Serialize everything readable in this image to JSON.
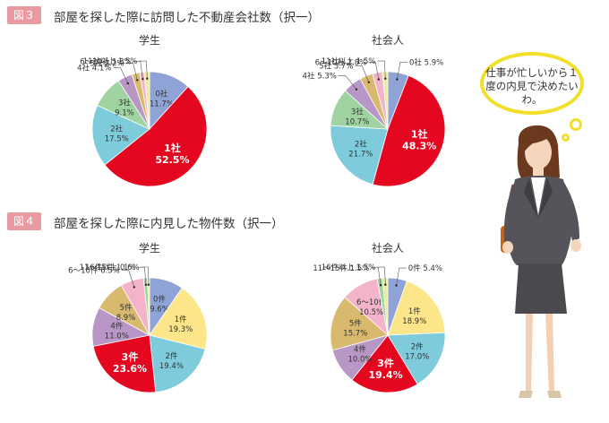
{
  "figures": [
    {
      "tag": "図３",
      "title": "部屋を探した際に訪問した不動産会社数（択一）",
      "chart_data": [
        {
          "type": "pie",
          "title": "学生",
          "slices": [
            {
              "label": "0社",
              "value": 11.7,
              "color": "#8fa3d6"
            },
            {
              "label": "1社",
              "value": 52.5,
              "color": "#e5061f"
            },
            {
              "label": "2社",
              "value": 17.5,
              "color": "#7ecbdb"
            },
            {
              "label": "3社",
              "value": 9.1,
              "color": "#9fd3a0"
            },
            {
              "label": "4社",
              "value": 4.1,
              "color": "#b897c6"
            },
            {
              "label": "5社",
              "value": 2.2,
              "color": "#d9b96e"
            },
            {
              "label": "6〜10社",
              "value": 1.3,
              "color": "#f3b3cb"
            },
            {
              "label": "11社以上",
              "value": 1.5,
              "color": "#e9ec9a"
            }
          ]
        },
        {
          "type": "pie",
          "title": "社会人",
          "slices": [
            {
              "label": "0社",
              "value": 5.9,
              "color": "#8fa3d6"
            },
            {
              "label": "1社",
              "value": 48.3,
              "color": "#e5061f"
            },
            {
              "label": "2社",
              "value": 21.7,
              "color": "#7ecbdb"
            },
            {
              "label": "3社",
              "value": 10.7,
              "color": "#9fd3a0"
            },
            {
              "label": "4社",
              "value": 5.3,
              "color": "#b897c6"
            },
            {
              "label": "5社",
              "value": 3.7,
              "color": "#d9b96e"
            },
            {
              "label": "6〜10社",
              "value": 2.8,
              "color": "#f3b3cb"
            },
            {
              "label": "11社以上",
              "value": 1.5,
              "color": "#e9ec9a"
            }
          ]
        }
      ]
    },
    {
      "tag": "図４",
      "title": "部屋を探した際に内見した物件数（択一）",
      "chart_data": [
        {
          "type": "pie",
          "title": "学生",
          "slices": [
            {
              "label": "0件",
              "value": 9.6,
              "color": "#8fa3d6"
            },
            {
              "label": "1件",
              "value": 19.3,
              "color": "#fde58a"
            },
            {
              "label": "2件",
              "value": 19.4,
              "color": "#7ecbdb"
            },
            {
              "label": "3件",
              "value": 23.6,
              "color": "#e5061f"
            },
            {
              "label": "4件",
              "value": 11.0,
              "color": "#b897c6"
            },
            {
              "label": "5件",
              "value": 8.9,
              "color": "#d9b96e"
            },
            {
              "label": "6〜10件",
              "value": 6.5,
              "color": "#f3b3cb"
            },
            {
              "label": "11〜15件",
              "value": 1.1,
              "color": "#9fd3a0"
            },
            {
              "label": "16件以上",
              "value": 0.6,
              "color": "#e9ec9a"
            }
          ]
        },
        {
          "type": "pie",
          "title": "社会人",
          "slices": [
            {
              "label": "0件",
              "value": 5.4,
              "color": "#8fa3d6"
            },
            {
              "label": "1件",
              "value": 18.9,
              "color": "#fde58a"
            },
            {
              "label": "2件",
              "value": 17.0,
              "color": "#7ecbdb"
            },
            {
              "label": "3件",
              "value": 19.4,
              "color": "#e5061f"
            },
            {
              "label": "4件",
              "value": 10.0,
              "color": "#b897c6"
            },
            {
              "label": "5件",
              "value": 15.7,
              "color": "#d9b96e"
            },
            {
              "label": "6〜10件",
              "value": 10.5,
              "color": "#f3b3cb"
            },
            {
              "label": "11〜15件",
              "value": 1.5,
              "color": "#9fd3a0"
            },
            {
              "label": "16件以上",
              "value": 1.5,
              "color": "#e9ec9a"
            }
          ]
        }
      ]
    }
  ],
  "speech_bubble": "仕事が忙しいから１度の内見で決めたいわ。"
}
